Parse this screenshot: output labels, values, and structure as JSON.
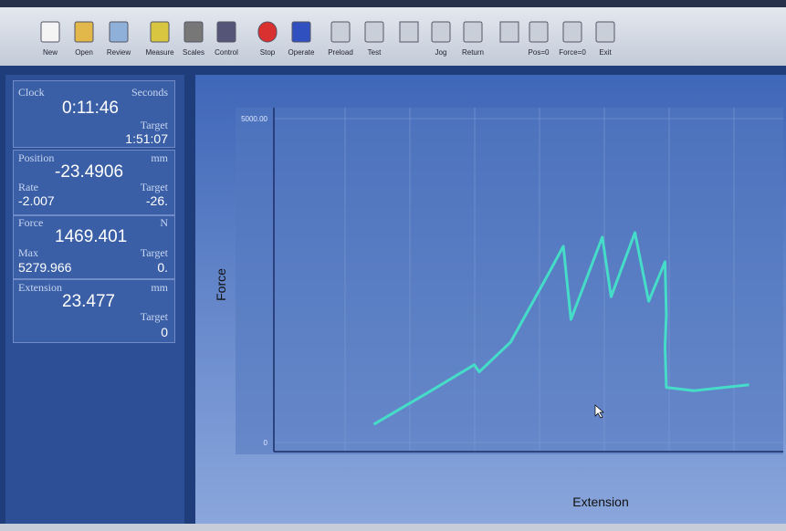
{
  "toolbar": {
    "buttons": [
      "New",
      "Open",
      "Review",
      "Measure",
      "Scales",
      "Control",
      "Stop",
      "Operate",
      "Preload",
      "Test",
      "Jog",
      "Return",
      "Pos=0",
      "Force=0",
      "Exit"
    ]
  },
  "panel": {
    "clock": {
      "label": "Clock",
      "unit": "Seconds",
      "value": "0:11:46",
      "target_label": "Target",
      "target": "1:51:07"
    },
    "position": {
      "label": "Position",
      "unit": "mm",
      "value": "-23.4906",
      "rate_label": "Rate",
      "rate": "-2.007",
      "target_label": "Target",
      "target": "-26."
    },
    "force": {
      "label": "Force",
      "unit": "N",
      "value": "1469.401",
      "max_label": "Max",
      "max": "5279.966",
      "target_label": "Target",
      "target": "0."
    },
    "extension": {
      "label": "Extension",
      "unit": "mm",
      "value": "23.477",
      "target_label": "Target",
      "target": "0"
    }
  },
  "chart_data": {
    "type": "line",
    "xlabel": "Extension",
    "ylabel": "Force",
    "color": "#45dcc8",
    "x": [
      7.6,
      12.0,
      15.6,
      16.0,
      18.5,
      21.5,
      22.7,
      23.3,
      25.8,
      26.5,
      28.4,
      29.5,
      30.8,
      30.9,
      30.8,
      30.9,
      33.1,
      37.5
    ],
    "values": [
      280,
      780,
      1200,
      1090,
      1550,
      2600,
      3030,
      1900,
      3170,
      2250,
      3240,
      2180,
      2790,
      1970,
      1480,
      850,
      800,
      890
    ],
    "xlim": [
      0,
      40
    ],
    "ylim": [
      0,
      5000
    ],
    "yticks": [
      0,
      {
        "value": 5000,
        "label": "5000.00"
      }
    ]
  }
}
